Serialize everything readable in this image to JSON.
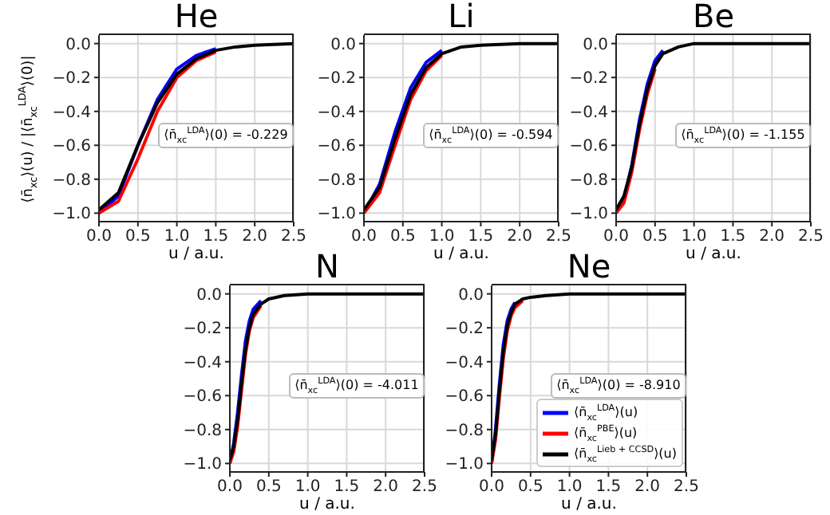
{
  "chart_data": [
    {
      "type": "line",
      "title": "He",
      "xlabel": "u / a.u.",
      "ylabel": "⟨n̄$_{xc}$⟩(u) / |⟨n̄$_{xc}$$^{LDA}$⟩(0)|",
      "annotations": [
        "⟨n̄$_{xc}$$^{LDA}$⟩(0) = -0.229"
      ],
      "x": [
        0,
        0.25,
        0.5,
        0.75,
        1,
        1.25,
        1.5,
        1.75,
        2,
        2.5
      ],
      "series": [
        {
          "color": "#0000ff",
          "values": [
            -1,
            -0.9,
            -0.6,
            -0.33,
            -0.15,
            -0.07,
            -0.03,
            null,
            null,
            null
          ]
        },
        {
          "color": "#ff0000",
          "values": [
            -1,
            -0.93,
            -0.68,
            -0.4,
            -0.2,
            -0.1,
            -0.05,
            null,
            null,
            null
          ]
        },
        {
          "color": "#000000",
          "values": [
            -0.98,
            -0.88,
            -0.6,
            -0.35,
            -0.18,
            -0.09,
            -0.04,
            -0.02,
            -0.01,
            0
          ]
        }
      ],
      "xlim": [
        0,
        2.5
      ],
      "ylim": [
        -1.05,
        0.05
      ],
      "xticks": [
        {
          "value": 0,
          "label": "0.0"
        },
        0.5,
        {
          "value": 1,
          "label": "1.0"
        },
        1.5,
        {
          "value": 2,
          "label": "2.0"
        },
        2.5
      ],
      "yticks": [
        {
          "value": -1,
          "label": "−1.0"
        },
        {
          "value": -0.8,
          "label": "−0.8"
        },
        {
          "value": -0.6,
          "label": "−0.6"
        },
        {
          "value": -0.4,
          "label": "−0.4"
        },
        {
          "value": -0.2,
          "label": "−0.2"
        },
        {
          "value": 0,
          "label": "0.0"
        }
      ],
      "grid": true,
      "legend": false
    },
    {
      "type": "line",
      "title": "Li",
      "xlabel": "u / a.u.",
      "annotations": [
        "⟨n̄$_{xc}$$^{LDA}$⟩(0) = -0.594"
      ],
      "x": [
        0,
        0.2,
        0.4,
        0.6,
        0.8,
        1,
        1.25,
        1.5,
        2,
        2.5
      ],
      "series": [
        {
          "color": "#0000ff",
          "values": [
            -1,
            -0.83,
            -0.52,
            -0.26,
            -0.11,
            -0.04,
            null,
            null,
            null,
            null
          ]
        },
        {
          "color": "#ff0000",
          "values": [
            -1,
            -0.88,
            -0.6,
            -0.33,
            -0.16,
            -0.07,
            null,
            null,
            null,
            null
          ]
        },
        {
          "color": "#000000",
          "values": [
            -0.98,
            -0.85,
            -0.56,
            -0.3,
            -0.14,
            -0.06,
            -0.02,
            -0.01,
            0,
            0
          ]
        }
      ],
      "xlim": [
        0,
        2.5
      ],
      "ylim": [
        -1.05,
        0.05
      ],
      "xticks": [
        {
          "value": 0,
          "label": "0.0"
        },
        0.5,
        {
          "value": 1,
          "label": "1.0"
        },
        1.5,
        {
          "value": 2,
          "label": "2.0"
        },
        2.5
      ],
      "yticks": [
        {
          "value": -1,
          "label": "−1.0"
        },
        {
          "value": -0.8,
          "label": "−0.8"
        },
        {
          "value": -0.6,
          "label": "−0.6"
        },
        {
          "value": -0.4,
          "label": "−0.4"
        },
        {
          "value": -0.2,
          "label": "−0.2"
        },
        {
          "value": 0,
          "label": "0.0"
        }
      ],
      "grid": true,
      "legend": false
    },
    {
      "type": "line",
      "title": "Be",
      "xlabel": "u / a.u.",
      "annotations": [
        "⟨n̄$_{xc}$$^{LDA}$⟩(0) = -1.155"
      ],
      "x": [
        0,
        0.1,
        0.2,
        0.3,
        0.4,
        0.5,
        0.6,
        0.8,
        1,
        1.5,
        2.5
      ],
      "series": [
        {
          "color": "#0000ff",
          "values": [
            -1,
            -0.92,
            -0.72,
            -0.45,
            -0.24,
            -0.1,
            -0.04,
            null,
            null,
            null,
            null
          ]
        },
        {
          "color": "#ff0000",
          "values": [
            -1,
            -0.94,
            -0.76,
            -0.51,
            -0.3,
            -0.15,
            null,
            null,
            null,
            null,
            null
          ]
        },
        {
          "color": "#000000",
          "values": [
            -0.98,
            -0.9,
            -0.73,
            -0.48,
            -0.27,
            -0.13,
            -0.06,
            -0.02,
            0,
            0,
            0
          ]
        }
      ],
      "xlim": [
        0,
        2.5
      ],
      "ylim": [
        -1.05,
        0.05
      ],
      "xticks": [
        {
          "value": 0,
          "label": "0.0"
        },
        0.5,
        {
          "value": 1,
          "label": "1.0"
        },
        1.5,
        {
          "value": 2,
          "label": "2.0"
        },
        2.5
      ],
      "yticks": [
        {
          "value": -1,
          "label": "−1.0"
        },
        {
          "value": -0.8,
          "label": "−0.8"
        },
        {
          "value": -0.6,
          "label": "−0.6"
        },
        {
          "value": -0.4,
          "label": "−0.4"
        },
        {
          "value": -0.2,
          "label": "−0.2"
        },
        {
          "value": 0,
          "label": "0.0"
        }
      ],
      "grid": true,
      "legend": false
    },
    {
      "type": "line",
      "title": "N",
      "xlabel": "u / a.u.",
      "annotations": [
        "⟨n̄$_{xc}$$^{LDA}$⟩(0) = -4.011"
      ],
      "x": [
        0,
        0.05,
        0.1,
        0.15,
        0.2,
        0.25,
        0.3,
        0.4,
        0.5,
        0.7,
        1,
        2.5
      ],
      "series": [
        {
          "color": "#0000ff",
          "values": [
            -1,
            -0.88,
            -0.7,
            -0.48,
            -0.28,
            -0.16,
            -0.09,
            -0.04,
            null,
            null,
            null,
            null
          ]
        },
        {
          "color": "#ff0000",
          "values": [
            -1,
            -0.93,
            -0.78,
            -0.57,
            -0.36,
            -0.22,
            -0.14,
            -0.07,
            null,
            null,
            null,
            null
          ]
        },
        {
          "color": "#000000",
          "values": [
            -0.98,
            -0.9,
            -0.74,
            -0.53,
            -0.33,
            -0.2,
            -0.12,
            -0.06,
            -0.03,
            -0.01,
            0,
            0
          ]
        }
      ],
      "xlim": [
        0,
        2.5
      ],
      "ylim": [
        -1.05,
        0.05
      ],
      "xticks": [
        {
          "value": 0,
          "label": "0.0"
        },
        0.5,
        {
          "value": 1,
          "label": "1.0"
        },
        1.5,
        {
          "value": 2,
          "label": "2.0"
        },
        2.5
      ],
      "yticks": [
        {
          "value": -1,
          "label": "−1.0"
        },
        {
          "value": -0.8,
          "label": "−0.8"
        },
        {
          "value": -0.6,
          "label": "−0.6"
        },
        {
          "value": -0.4,
          "label": "−0.4"
        },
        {
          "value": -0.2,
          "label": "−0.2"
        },
        {
          "value": 0,
          "label": "0.0"
        }
      ],
      "grid": true,
      "legend": false
    },
    {
      "type": "line",
      "title": "Ne",
      "xlabel": "u / a.u.",
      "annotations": [
        "⟨n̄$_{xc}$$^{LDA}$⟩(0) = -8.910"
      ],
      "x": [
        0,
        0.05,
        0.1,
        0.15,
        0.2,
        0.25,
        0.3,
        0.4,
        0.5,
        0.7,
        1,
        2.5
      ],
      "series": [
        {
          "name": "⟨n̄$_{xc}$$^{LDA}$⟩(u)",
          "color": "#0000ff",
          "values": [
            -1,
            -0.8,
            -0.53,
            -0.3,
            -0.16,
            -0.09,
            -0.05,
            null,
            null,
            null,
            null,
            null
          ]
        },
        {
          "name": "⟨n̄$_{xc}$$^{PBE}$⟩(u)",
          "color": "#ff0000",
          "values": [
            -1,
            -0.86,
            -0.61,
            -0.38,
            -0.22,
            -0.13,
            -0.08,
            -0.04,
            null,
            null,
            null,
            null
          ]
        },
        {
          "name": "⟨n̄$_{xc}$$^{Lieb + CCSD}$⟩(u)",
          "color": "#000000",
          "values": [
            -0.98,
            -0.83,
            -0.57,
            -0.34,
            -0.19,
            -0.11,
            -0.06,
            -0.03,
            -0.02,
            -0.01,
            0,
            0
          ]
        }
      ],
      "xlim": [
        0,
        2.5
      ],
      "ylim": [
        -1.05,
        0.05
      ],
      "xticks": [
        {
          "value": 0,
          "label": "0.0"
        },
        0.5,
        {
          "value": 1,
          "label": "1.0"
        },
        1.5,
        {
          "value": 2,
          "label": "2.0"
        },
        2.5
      ],
      "yticks": [
        {
          "value": -1,
          "label": "−1.0"
        },
        {
          "value": -0.8,
          "label": "−0.8"
        },
        {
          "value": -0.6,
          "label": "−0.6"
        },
        {
          "value": -0.4,
          "label": "−0.4"
        },
        {
          "value": -0.2,
          "label": "−0.2"
        },
        {
          "value": 0,
          "label": "0.0"
        }
      ],
      "grid": true,
      "legend": "bottom right"
    }
  ]
}
